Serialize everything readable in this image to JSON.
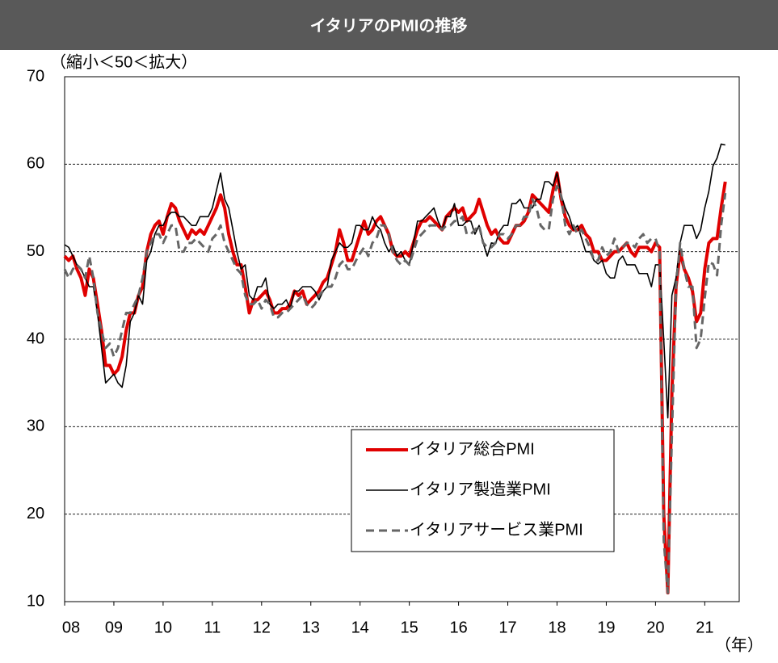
{
  "chart_data": {
    "type": "line",
    "title": "イタリアのPMIの推移",
    "y_label": "（縮小＜50＜拡大）",
    "x_label": "（年）",
    "ylim": [
      10,
      70
    ],
    "yticks": [
      10,
      20,
      30,
      40,
      50,
      60,
      70
    ],
    "xlim": [
      2008,
      2021.7
    ],
    "xticks": [
      {
        "value": 2008,
        "label": "08"
      },
      {
        "value": 2009,
        "label": "09"
      },
      {
        "value": 2010,
        "label": "10"
      },
      {
        "value": 2011,
        "label": "11"
      },
      {
        "value": 2012,
        "label": "12"
      },
      {
        "value": 2013,
        "label": "13"
      },
      {
        "value": 2014,
        "label": "14"
      },
      {
        "value": 2015,
        "label": "15"
      },
      {
        "value": 2016,
        "label": "16"
      },
      {
        "value": 2017,
        "label": "17"
      },
      {
        "value": 2018,
        "label": "18"
      },
      {
        "value": 2019,
        "label": "19"
      },
      {
        "value": 2020,
        "label": "20"
      },
      {
        "value": 2021,
        "label": "21"
      }
    ],
    "grid": true,
    "x": [
      2008,
      2008.083,
      2008.167,
      2008.25,
      2008.333,
      2008.417,
      2008.5,
      2008.583,
      2008.667,
      2008.75,
      2008.833,
      2008.917,
      2009,
      2009.083,
      2009.167,
      2009.25,
      2009.333,
      2009.417,
      2009.5,
      2009.583,
      2009.667,
      2009.75,
      2009.833,
      2009.917,
      2010,
      2010.083,
      2010.167,
      2010.25,
      2010.333,
      2010.417,
      2010.5,
      2010.583,
      2010.667,
      2010.75,
      2010.833,
      2010.917,
      2011,
      2011.083,
      2011.167,
      2011.25,
      2011.333,
      2011.417,
      2011.5,
      2011.583,
      2011.667,
      2011.75,
      2011.833,
      2011.917,
      2012,
      2012.083,
      2012.167,
      2012.25,
      2012.333,
      2012.417,
      2012.5,
      2012.583,
      2012.667,
      2012.75,
      2012.833,
      2012.917,
      2013,
      2013.083,
      2013.167,
      2013.25,
      2013.333,
      2013.417,
      2013.5,
      2013.583,
      2013.667,
      2013.75,
      2013.833,
      2013.917,
      2014,
      2014.083,
      2014.167,
      2014.25,
      2014.333,
      2014.417,
      2014.5,
      2014.583,
      2014.667,
      2014.75,
      2014.833,
      2014.917,
      2015,
      2015.083,
      2015.167,
      2015.25,
      2015.333,
      2015.417,
      2015.5,
      2015.583,
      2015.667,
      2015.75,
      2015.833,
      2015.917,
      2016,
      2016.083,
      2016.167,
      2016.25,
      2016.333,
      2016.417,
      2016.5,
      2016.583,
      2016.667,
      2016.75,
      2016.833,
      2016.917,
      2017,
      2017.083,
      2017.167,
      2017.25,
      2017.333,
      2017.417,
      2017.5,
      2017.583,
      2017.667,
      2017.75,
      2017.833,
      2017.917,
      2018,
      2018.083,
      2018.167,
      2018.25,
      2018.333,
      2018.417,
      2018.5,
      2018.583,
      2018.667,
      2018.75,
      2018.833,
      2018.917,
      2019,
      2019.083,
      2019.167,
      2019.25,
      2019.333,
      2019.417,
      2019.5,
      2019.583,
      2019.667,
      2019.75,
      2019.833,
      2019.917,
      2020,
      2020.083,
      2020.167,
      2020.25,
      2020.333,
      2020.417,
      2020.5,
      2020.583,
      2020.667,
      2020.75,
      2020.833,
      2020.917,
      2021,
      2021.083,
      2021.167,
      2021.25,
      2021.333,
      2021.417
    ],
    "series": [
      {
        "name": "イタリア総合PMI",
        "color": "#e00000",
        "line_width": 4,
        "line_style": "solid",
        "values": [
          49.5,
          49,
          49.5,
          48,
          47,
          45,
          48,
          47,
          44,
          41,
          37,
          37,
          36,
          36.5,
          38,
          41,
          43,
          43,
          45,
          46,
          50,
          52,
          53,
          53.5,
          52,
          54,
          55.5,
          55,
          53.5,
          52.5,
          51.5,
          52.5,
          52,
          52.5,
          52,
          53,
          54,
          55,
          56.5,
          55,
          52,
          50,
          48.5,
          48.5,
          46,
          43,
          44.5,
          44.5,
          45,
          45.5,
          44.5,
          43,
          43,
          43.5,
          43.5,
          44,
          45.5,
          45,
          45.5,
          44,
          44.5,
          45,
          45.5,
          46.5,
          47,
          48.5,
          50,
          52.5,
          51,
          49,
          49,
          50.5,
          52,
          53.5,
          52,
          52.5,
          53.5,
          54,
          53,
          52,
          50,
          49.5,
          49.5,
          50,
          49.5,
          51,
          52.5,
          53.5,
          53.5,
          54,
          53.5,
          53,
          52.5,
          54,
          54.5,
          55,
          54.5,
          55,
          53.5,
          54,
          54.5,
          56,
          54.5,
          53,
          52,
          52.5,
          51.5,
          51,
          51,
          52,
          53,
          53,
          53.5,
          54.5,
          56.5,
          56,
          55.5,
          55,
          54.5,
          57,
          59,
          56,
          54,
          53,
          52.5,
          52.5,
          53,
          52,
          51.5,
          50,
          50,
          49,
          49,
          49.5,
          50,
          50,
          50.5,
          51,
          50,
          49.5,
          50.5,
          50.5,
          50.5,
          50,
          51,
          50.5,
          20,
          11,
          34,
          46,
          50,
          48,
          47,
          45.5,
          42,
          43,
          48,
          51,
          51.5,
          51.5,
          55,
          58
        ]
      },
      {
        "name": "イタリア製造業PMI",
        "color": "#000000",
        "line_width": 1.6,
        "line_style": "solid",
        "values": [
          50.8,
          50.5,
          49.5,
          48.5,
          48,
          47,
          46,
          46,
          43,
          39,
          35,
          35.5,
          36,
          35,
          34.5,
          37,
          42,
          43,
          45,
          44,
          49,
          50,
          52,
          53,
          53,
          54,
          54.5,
          54.5,
          54,
          54,
          53.5,
          53,
          53,
          54,
          54,
          54,
          55,
          57,
          59,
          56,
          55,
          52.5,
          50,
          48,
          48.5,
          45,
          44.5,
          46,
          46,
          47,
          44,
          43.5,
          44,
          44,
          44.5,
          43.5,
          45.5,
          45.5,
          46,
          46,
          46,
          45.5,
          44.5,
          45.5,
          46,
          49,
          50,
          51,
          50.5,
          50.5,
          51,
          53,
          53,
          52.5,
          52.5,
          54,
          53,
          52.5,
          51,
          50,
          50.7,
          49.5,
          50,
          49,
          48.5,
          51,
          53.5,
          53.5,
          54,
          54.5,
          55,
          53.5,
          52.5,
          54,
          54,
          55.5,
          53,
          53,
          53.5,
          53.5,
          52,
          53,
          51,
          49.5,
          51,
          50.9,
          52.3,
          53,
          53,
          55.5,
          55.5,
          56,
          55,
          55,
          55,
          56,
          56,
          58,
          58,
          57.5,
          59,
          56.5,
          55,
          54,
          52.5,
          53,
          51.5,
          50,
          50,
          49,
          48.6,
          49,
          47.5,
          47,
          47,
          49,
          49.5,
          48.5,
          48.5,
          48.5,
          47.5,
          47.5,
          47.5,
          46,
          48.5,
          48.5,
          40,
          31,
          45,
          47,
          51,
          53,
          53,
          53,
          51.5,
          52.5,
          55,
          56.9,
          59.8,
          60.7,
          62.3,
          62.2
        ]
      },
      {
        "name": "イタリアサービス業PMI",
        "color": "#666666",
        "line_width": 3,
        "line_style": "dashed",
        "values": [
          48,
          47,
          48,
          48.5,
          48,
          47,
          49.5,
          47,
          43,
          41,
          39,
          39.5,
          38,
          39,
          41,
          43,
          43,
          44,
          45,
          47,
          50,
          51,
          52,
          52,
          51,
          52,
          53,
          53,
          50,
          50,
          51,
          51,
          51.5,
          51,
          50.5,
          50,
          51.5,
          52,
          53,
          51,
          50,
          49,
          48,
          47.5,
          45,
          44,
          44,
          44.5,
          43.5,
          44.5,
          44,
          42.5,
          42.5,
          43,
          43,
          43.5,
          44,
          44.5,
          45,
          44,
          43.5,
          44,
          45,
          45.5,
          46,
          46,
          47,
          48.5,
          49,
          48,
          48,
          49,
          49.8,
          50.5,
          49.5,
          51,
          51.5,
          53,
          53,
          52,
          50,
          49,
          48.5,
          49,
          48.5,
          50,
          51.5,
          52,
          52.5,
          53,
          53,
          53,
          52.5,
          53,
          53,
          53.5,
          53.5,
          54,
          52,
          52,
          52.5,
          53,
          51,
          50.5,
          50.5,
          51,
          52,
          52,
          51.5,
          52,
          53,
          53,
          54,
          54,
          56,
          55,
          53,
          52.5,
          52.5,
          56,
          57.5,
          56.4,
          53,
          52,
          53,
          52,
          52.5,
          51.5,
          50.5,
          49,
          49,
          50.5,
          49.5,
          50,
          51.5,
          50,
          50.5,
          51,
          51,
          50.5,
          51.5,
          52,
          51,
          51.5,
          51.5,
          50,
          17,
          11,
          29,
          46,
          51,
          48,
          46,
          46,
          39,
          40,
          44.7,
          48.8,
          48.6,
          47.3,
          53,
          56.7
        ]
      }
    ]
  }
}
